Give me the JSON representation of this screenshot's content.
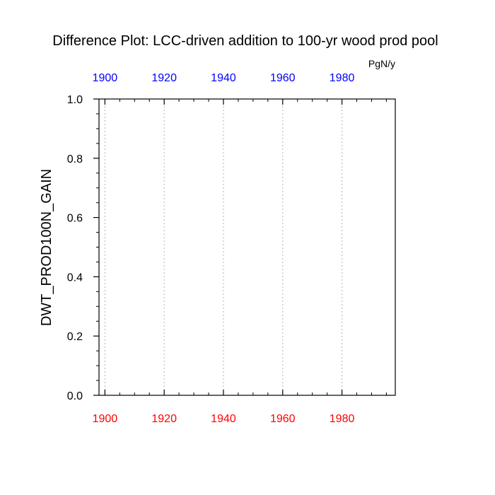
{
  "chart_data": {
    "type": "line",
    "title": "Difference Plot: LCC-driven addition to 100-yr wood prod pool",
    "units": "PgN/y",
    "ylabel": "DWT_PROD100N_GAIN",
    "xlabel": "",
    "xlim": [
      1898,
      1998
    ],
    "ylim": [
      0.0,
      1.0
    ],
    "x_ticks_bottom": [
      "1900",
      "1920",
      "1940",
      "1960",
      "1980"
    ],
    "x_ticks_top": [
      "1900",
      "1920",
      "1940",
      "1960",
      "1980"
    ],
    "x_tick_values": [
      1900,
      1920,
      1940,
      1960,
      1980
    ],
    "y_ticks": [
      "0.0",
      "0.2",
      "0.4",
      "0.6",
      "0.8",
      "1.0"
    ],
    "y_tick_values": [
      0.0,
      0.2,
      0.4,
      0.6,
      0.8,
      1.0
    ],
    "grid": "vertical dotted at major x ticks",
    "series": [],
    "colors": {
      "bottom_axis_labels": "#ff0000",
      "top_axis_labels": "#0000ff",
      "frame": "#000000",
      "grid": "#b4b4b4"
    }
  }
}
